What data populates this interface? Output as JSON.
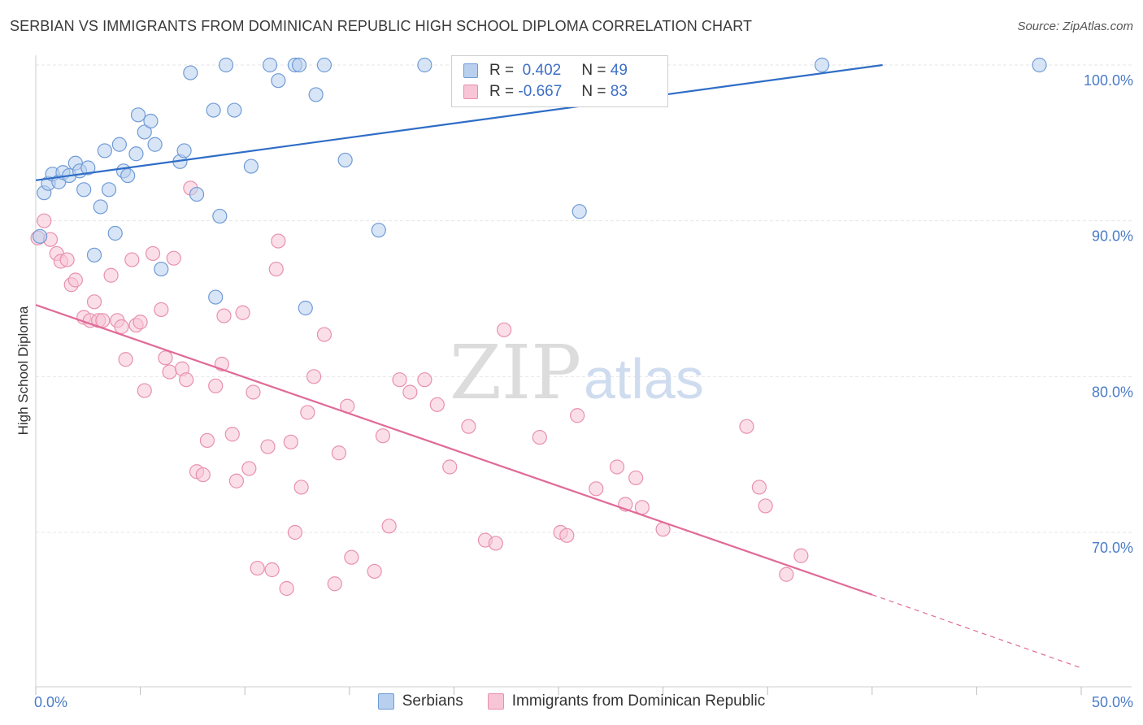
{
  "title": "SERBIAN VS IMMIGRANTS FROM DOMINICAN REPUBLIC HIGH SCHOOL DIPLOMA CORRELATION CHART",
  "source": "Source: ZipAtlas.com",
  "watermark": {
    "zip": "ZIP",
    "atlas": "atlas"
  },
  "colors": {
    "blue_fill": "#b8d0ee",
    "blue_stroke": "#6f9bd6",
    "blue_line": "#2f6dc6",
    "pink_fill": "#f7c5d5",
    "pink_stroke": "#e890ad",
    "pink_line": "#e06b98",
    "tick_text": "#4a7cc7",
    "grid": "#e6e6e6"
  },
  "legend": {
    "rows": [
      {
        "r_label": "R =",
        "r_value": " 0.402",
        "n_label": "N =",
        "n_value": "49"
      },
      {
        "r_label": "R =",
        "r_value": "-0.667",
        "n_label": "N =",
        "n_value": "83"
      }
    ]
  },
  "chart_data": {
    "type": "scatter",
    "title": "SERBIAN VS IMMIGRANTS FROM DOMINICAN REPUBLIC HIGH SCHOOL DIPLOMA CORRELATION CHART",
    "xlabel": "",
    "ylabel": "High School Diploma",
    "xlim": [
      0,
      50
    ],
    "ylim": [
      60.5,
      101.5
    ],
    "x_tick_labels": [
      "0.0%",
      "50.0%"
    ],
    "y_ticks": [
      70,
      80,
      90,
      100
    ],
    "y_tick_labels": [
      "70.0%",
      "80.0%",
      "90.0%",
      "100.0%"
    ],
    "grid": true,
    "legend_position": "top-center",
    "series": [
      {
        "name": "Serbians",
        "r": 0.402,
        "n": 49,
        "trend": {
          "x0": 0,
          "y0": 92.6,
          "x1": 40.5,
          "y1": 100
        },
        "points": [
          [
            0.2,
            89.0
          ],
          [
            0.4,
            91.8
          ],
          [
            0.6,
            92.4
          ],
          [
            0.8,
            93.0
          ],
          [
            1.1,
            92.5
          ],
          [
            1.3,
            93.1
          ],
          [
            1.6,
            92.9
          ],
          [
            1.9,
            93.7
          ],
          [
            2.1,
            93.2
          ],
          [
            2.3,
            92.0
          ],
          [
            2.5,
            93.4
          ],
          [
            2.8,
            87.8
          ],
          [
            3.1,
            90.9
          ],
          [
            3.3,
            94.5
          ],
          [
            3.5,
            92.0
          ],
          [
            3.8,
            89.2
          ],
          [
            4.0,
            94.9
          ],
          [
            4.2,
            93.2
          ],
          [
            4.4,
            92.9
          ],
          [
            4.8,
            94.3
          ],
          [
            4.9,
            96.8
          ],
          [
            5.2,
            95.7
          ],
          [
            5.5,
            96.4
          ],
          [
            5.7,
            94.9
          ],
          [
            6.0,
            86.9
          ],
          [
            6.9,
            93.8
          ],
          [
            7.1,
            94.5
          ],
          [
            7.4,
            99.5
          ],
          [
            7.7,
            91.7
          ],
          [
            8.5,
            97.1
          ],
          [
            8.6,
            85.1
          ],
          [
            8.8,
            90.3
          ],
          [
            9.1,
            100
          ],
          [
            9.5,
            97.1
          ],
          [
            10.3,
            93.5
          ],
          [
            11.2,
            100
          ],
          [
            11.6,
            99.0
          ],
          [
            12.4,
            100
          ],
          [
            12.6,
            100
          ],
          [
            12.9,
            84.4
          ],
          [
            13.4,
            98.1
          ],
          [
            13.8,
            100
          ],
          [
            14.8,
            93.9
          ],
          [
            16.4,
            89.4
          ],
          [
            18.6,
            100
          ],
          [
            20.6,
            100
          ],
          [
            26.0,
            90.6
          ],
          [
            37.6,
            100
          ],
          [
            48.0,
            100
          ]
        ]
      },
      {
        "name": "Immigrants from Dominican Republic",
        "r": -0.667,
        "n": 83,
        "trend": {
          "x0": 0,
          "y0": 84.6,
          "x1": 40,
          "y1": 66.0
        },
        "trend_dashed": {
          "x0": 40,
          "y0": 66.0,
          "x1": 50,
          "y1": 61.3
        },
        "points": [
          [
            0.1,
            88.9
          ],
          [
            0.4,
            90.0
          ],
          [
            0.7,
            88.8
          ],
          [
            1.0,
            87.9
          ],
          [
            1.2,
            87.4
          ],
          [
            1.5,
            87.5
          ],
          [
            1.7,
            85.9
          ],
          [
            1.9,
            86.2
          ],
          [
            2.3,
            83.8
          ],
          [
            2.6,
            83.6
          ],
          [
            2.8,
            84.8
          ],
          [
            3.0,
            83.6
          ],
          [
            3.2,
            83.6
          ],
          [
            3.6,
            86.5
          ],
          [
            3.9,
            83.6
          ],
          [
            4.1,
            83.2
          ],
          [
            4.3,
            81.1
          ],
          [
            4.6,
            87.5
          ],
          [
            4.8,
            83.3
          ],
          [
            5.0,
            83.5
          ],
          [
            5.2,
            79.1
          ],
          [
            5.6,
            87.9
          ],
          [
            6.0,
            84.3
          ],
          [
            6.2,
            81.2
          ],
          [
            6.4,
            80.3
          ],
          [
            6.6,
            87.6
          ],
          [
            7.0,
            80.5
          ],
          [
            7.2,
            79.8
          ],
          [
            7.4,
            92.1
          ],
          [
            7.7,
            73.9
          ],
          [
            8.0,
            73.7
          ],
          [
            8.2,
            75.9
          ],
          [
            8.6,
            79.4
          ],
          [
            8.9,
            80.8
          ],
          [
            9.0,
            83.9
          ],
          [
            9.4,
            76.3
          ],
          [
            9.6,
            73.3
          ],
          [
            9.9,
            84.1
          ],
          [
            10.2,
            74.1
          ],
          [
            10.4,
            79.0
          ],
          [
            10.6,
            67.7
          ],
          [
            11.1,
            75.5
          ],
          [
            11.3,
            67.6
          ],
          [
            11.5,
            86.9
          ],
          [
            11.6,
            88.7
          ],
          [
            12.0,
            66.4
          ],
          [
            12.2,
            75.8
          ],
          [
            12.4,
            70.0
          ],
          [
            12.7,
            72.9
          ],
          [
            13.0,
            77.7
          ],
          [
            13.3,
            80.0
          ],
          [
            13.8,
            82.7
          ],
          [
            14.3,
            66.7
          ],
          [
            14.5,
            75.1
          ],
          [
            14.9,
            78.1
          ],
          [
            15.1,
            68.4
          ],
          [
            16.2,
            67.5
          ],
          [
            16.6,
            76.2
          ],
          [
            16.9,
            70.4
          ],
          [
            17.4,
            79.8
          ],
          [
            17.9,
            79.0
          ],
          [
            18.6,
            79.8
          ],
          [
            19.2,
            78.2
          ],
          [
            19.8,
            74.2
          ],
          [
            20.7,
            76.8
          ],
          [
            21.5,
            69.5
          ],
          [
            22.0,
            69.3
          ],
          [
            22.4,
            83.0
          ],
          [
            24.1,
            76.1
          ],
          [
            25.1,
            70.0
          ],
          [
            25.4,
            69.8
          ],
          [
            25.9,
            77.5
          ],
          [
            26.8,
            72.8
          ],
          [
            27.8,
            74.2
          ],
          [
            28.2,
            71.8
          ],
          [
            28.7,
            73.5
          ],
          [
            29.0,
            71.6
          ],
          [
            30.0,
            70.2
          ],
          [
            34.0,
            76.8
          ],
          [
            34.6,
            72.9
          ],
          [
            34.9,
            71.7
          ],
          [
            35.9,
            67.3
          ],
          [
            36.6,
            68.5
          ]
        ]
      }
    ]
  }
}
